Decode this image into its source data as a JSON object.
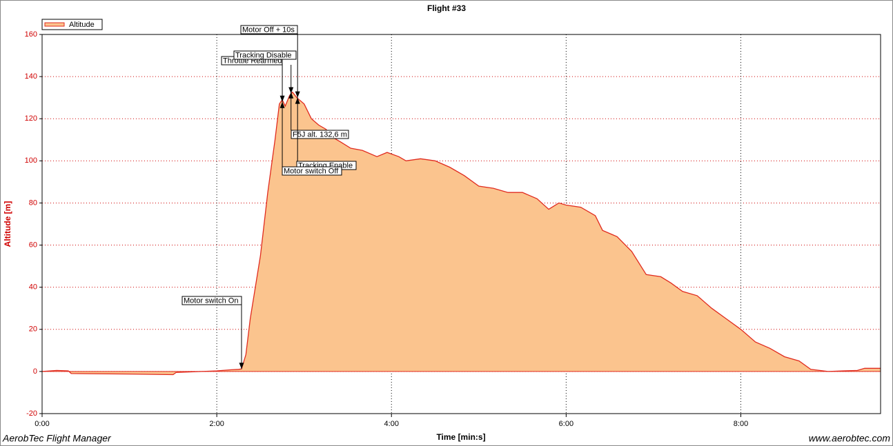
{
  "chart_data": {
    "type": "area",
    "title": "Flight #33",
    "x_label": "Time [min:s]",
    "y_label": "Altitude [m]",
    "footer_left": "AerobTec Flight Manager",
    "footer_right": "www.aerobtec.com",
    "legend": "top-left",
    "grid": true,
    "series_name": "Altitude",
    "color": "#e02a1e",
    "fill": "#fbc48e",
    "x": [
      0,
      10,
      18,
      20,
      60,
      90,
      92,
      120,
      130,
      135,
      137,
      140,
      143,
      146,
      150,
      155,
      160,
      163,
      165,
      167,
      170,
      172,
      175,
      180,
      185,
      190,
      195,
      200,
      205,
      212,
      220,
      230,
      237,
      245,
      250,
      260,
      270,
      280,
      290,
      300,
      310,
      320,
      330,
      340,
      348,
      355,
      360,
      370,
      380,
      385,
      395,
      405,
      415,
      425,
      432,
      440,
      450,
      460,
      470,
      480,
      490,
      500,
      510,
      520,
      528,
      540,
      550,
      560,
      565,
      576
    ],
    "values": [
      0,
      0.5,
      0.3,
      -1,
      -1.2,
      -1.5,
      -0.5,
      0.3,
      0.8,
      1,
      1.2,
      8,
      25,
      38,
      55,
      85,
      110,
      127,
      129,
      126,
      131,
      132.6,
      130,
      127,
      120,
      117,
      115,
      111,
      109,
      106,
      105,
      102,
      104,
      102,
      100,
      101,
      100,
      97,
      93,
      88,
      87,
      85,
      85,
      82,
      77,
      80,
      79,
      78,
      74,
      67,
      64,
      57,
      46,
      45,
      42,
      38,
      36,
      30,
      25,
      20,
      14,
      11,
      7,
      5,
      1,
      0,
      0.3,
      0.5,
      1.5,
      1.5
    ],
    "xlim": [
      0,
      576
    ],
    "ylim": [
      -20,
      160
    ],
    "xticks": [
      {
        "value": 0,
        "label": "0:00"
      },
      {
        "value": 120,
        "label": "2:00"
      },
      {
        "value": 240,
        "label": "4:00"
      },
      {
        "value": 360,
        "label": "6:00"
      },
      {
        "value": 480,
        "label": "8:00"
      }
    ],
    "yticks": [
      -20,
      0,
      20,
      40,
      60,
      80,
      100,
      120,
      140,
      160
    ],
    "annotations": [
      {
        "text": "Motor switch On",
        "x": 137,
        "y": 1.2
      },
      {
        "text": "Tracking Disable",
        "x": 165,
        "y": 128
      },
      {
        "text": "Throttle Rearmed",
        "x": 171,
        "y": 132
      },
      {
        "text": "Motor Off + 10s",
        "x": 175.5,
        "y": 130
      },
      {
        "text": "F5J alt. 132,6 m",
        "x": 171,
        "y": 132.6
      },
      {
        "text": "Tracking Enable",
        "x": 175.5,
        "y": 130
      },
      {
        "text": "Motor switch Off",
        "x": 165,
        "y": 128
      }
    ]
  }
}
